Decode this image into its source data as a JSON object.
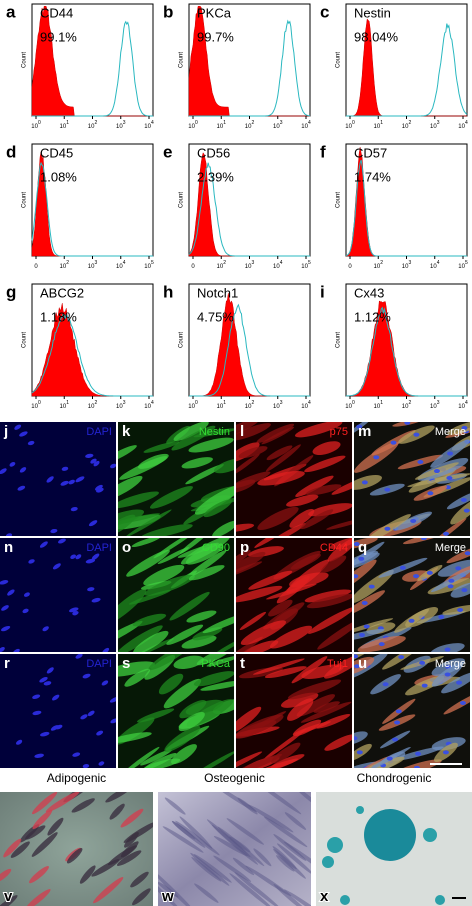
{
  "flow_panels": [
    {
      "letter": "a",
      "marker": "CD44",
      "percent": "99.1%",
      "y_label": "Count",
      "x_ticks": [
        {
          "base": "10",
          "exp": "0"
        },
        {
          "base": "10",
          "exp": "1"
        },
        {
          "base": "10",
          "exp": "2"
        },
        {
          "base": "10",
          "exp": "3"
        },
        {
          "base": "10",
          "exp": "4"
        }
      ]
    },
    {
      "letter": "b",
      "marker": "PKCa",
      "percent": "99.7%",
      "y_label": "Count",
      "x_ticks": [
        {
          "base": "10",
          "exp": "0"
        },
        {
          "base": "10",
          "exp": "1"
        },
        {
          "base": "10",
          "exp": "2"
        },
        {
          "base": "10",
          "exp": "3"
        },
        {
          "base": "10",
          "exp": "4"
        }
      ]
    },
    {
      "letter": "c",
      "marker": "Nestin",
      "percent": "98.04%",
      "y_label": "Count",
      "x_ticks": [
        {
          "base": "10",
          "exp": "0"
        },
        {
          "base": "10",
          "exp": "1"
        },
        {
          "base": "10",
          "exp": "2"
        },
        {
          "base": "10",
          "exp": "3"
        },
        {
          "base": "10",
          "exp": "4"
        }
      ]
    },
    {
      "letter": "d",
      "marker": "CD45",
      "percent": "1.08%",
      "y_label": "Count",
      "x_ticks": [
        {
          "base": "0"
        },
        {
          "base": "10",
          "exp": "2"
        },
        {
          "base": "10",
          "exp": "3"
        },
        {
          "base": "10",
          "exp": "4"
        },
        {
          "base": "10",
          "exp": "5"
        }
      ]
    },
    {
      "letter": "e",
      "marker": "CD56",
      "percent": "2.39%",
      "y_label": "Count",
      "x_ticks": [
        {
          "base": "0"
        },
        {
          "base": "10",
          "exp": "2"
        },
        {
          "base": "10",
          "exp": "3"
        },
        {
          "base": "10",
          "exp": "4"
        },
        {
          "base": "10",
          "exp": "5"
        }
      ]
    },
    {
      "letter": "f",
      "marker": "CD57",
      "percent": "1.74%",
      "y_label": "Count",
      "x_ticks": [
        {
          "base": "0"
        },
        {
          "base": "10",
          "exp": "2"
        },
        {
          "base": "10",
          "exp": "3"
        },
        {
          "base": "10",
          "exp": "4"
        },
        {
          "base": "10",
          "exp": "5"
        }
      ]
    },
    {
      "letter": "g",
      "marker": "ABCG2",
      "percent": "1.18%",
      "y_label": "Count",
      "x_ticks": [
        {
          "base": "10",
          "exp": "0"
        },
        {
          "base": "10",
          "exp": "1"
        },
        {
          "base": "10",
          "exp": "2"
        },
        {
          "base": "10",
          "exp": "3"
        },
        {
          "base": "10",
          "exp": "4"
        }
      ]
    },
    {
      "letter": "h",
      "marker": "Notch1",
      "percent": "4.75%",
      "y_label": "Count",
      "x_ticks": [
        {
          "base": "10",
          "exp": "0"
        },
        {
          "base": "10",
          "exp": "1"
        },
        {
          "base": "10",
          "exp": "2"
        },
        {
          "base": "10",
          "exp": "3"
        },
        {
          "base": "10",
          "exp": "4"
        }
      ]
    },
    {
      "letter": "i",
      "marker": "Cx43",
      "percent": "1.12%",
      "y_label": "Count",
      "x_ticks": [
        {
          "base": "10",
          "exp": "0"
        },
        {
          "base": "10",
          "exp": "1"
        },
        {
          "base": "10",
          "exp": "2"
        },
        {
          "base": "10",
          "exp": "3"
        },
        {
          "base": "10",
          "exp": "4"
        }
      ]
    }
  ],
  "fluorescence_panels": [
    {
      "letter": "j",
      "label": "DAPI"
    },
    {
      "letter": "k",
      "label": "Nestin"
    },
    {
      "letter": "l",
      "label": "p75"
    },
    {
      "letter": "m",
      "label": "Merge"
    },
    {
      "letter": "n",
      "label": "DAPI"
    },
    {
      "letter": "o",
      "label": "CD90"
    },
    {
      "letter": "p",
      "label": "CD44"
    },
    {
      "letter": "q",
      "label": "Merge"
    },
    {
      "letter": "r",
      "label": "DAPI"
    },
    {
      "letter": "s",
      "label": "PKCa"
    },
    {
      "letter": "t",
      "label": "Tuj1"
    },
    {
      "letter": "u",
      "label": "Merge"
    }
  ],
  "differentiation_panels": [
    {
      "letter": "v",
      "title": "Adipogenic"
    },
    {
      "letter": "w",
      "title": "Osteogenic"
    },
    {
      "letter": "x",
      "title": "Chondrogenic"
    }
  ]
}
